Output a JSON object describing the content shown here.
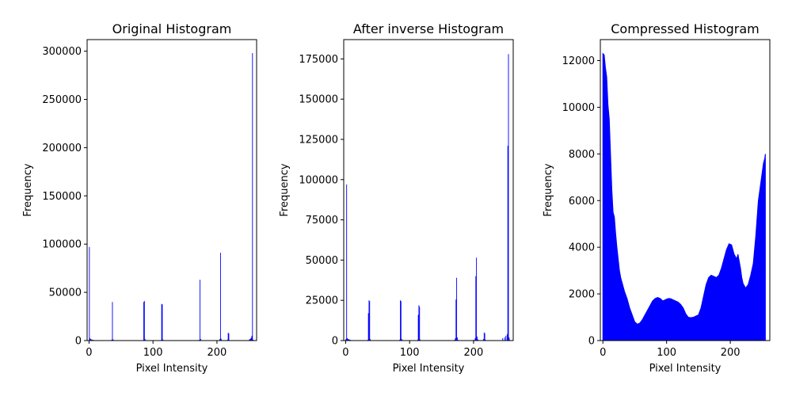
{
  "chart_data": [
    {
      "type": "bar",
      "title": "Original Histogram",
      "xlabel": "Pixel Intensity",
      "ylabel": "Frequency",
      "xlim": [
        -3,
        262
      ],
      "ylim": [
        0,
        312000
      ],
      "xticks": [
        0,
        100,
        200
      ],
      "yticks": [
        0,
        50000,
        100000,
        150000,
        200000,
        250000,
        300000
      ],
      "color": "#0000ff",
      "grid": false,
      "x": [
        0,
        1,
        2,
        3,
        4,
        5,
        6,
        7,
        8,
        9,
        10,
        11,
        34,
        35,
        36,
        37,
        38,
        39,
        84,
        85,
        86,
        87,
        88,
        89,
        112,
        113,
        114,
        115,
        116,
        117,
        150,
        160,
        170,
        172,
        173,
        174,
        175,
        176,
        177,
        200,
        203,
        204,
        205,
        206,
        207,
        208,
        216,
        217,
        218,
        219,
        250,
        251,
        252,
        253,
        254,
        255,
        256
      ],
      "values": [
        97000,
        2500,
        1500,
        1200,
        900,
        700,
        600,
        500,
        400,
        300,
        200,
        150,
        300,
        900,
        40000,
        1200,
        500,
        200,
        500,
        40000,
        41000,
        1500,
        500,
        300,
        500,
        38000,
        37500,
        1000,
        400,
        200,
        200,
        300,
        500,
        800,
        63000,
        1500,
        500,
        300,
        200,
        300,
        500,
        1500,
        91000,
        2000,
        500,
        200,
        1000,
        8000,
        7500,
        500,
        1000,
        1500,
        2000,
        3000,
        5000,
        298000,
        1000
      ]
    },
    {
      "type": "bar",
      "title": "After inverse Histogram",
      "xlabel": "Pixel Intensity",
      "ylabel": "Frequency",
      "xlim": [
        -3,
        262
      ],
      "ylim": [
        0,
        187000
      ],
      "xticks": [
        0,
        100,
        200
      ],
      "yticks": [
        0,
        25000,
        50000,
        75000,
        100000,
        125000,
        150000,
        175000
      ],
      "color": "#0000ff",
      "grid": false,
      "x": [
        0,
        1,
        2,
        3,
        4,
        5,
        6,
        7,
        8,
        9,
        10,
        34,
        35,
        36,
        37,
        38,
        39,
        84,
        85,
        86,
        87,
        88,
        89,
        112,
        113,
        114,
        115,
        116,
        117,
        160,
        170,
        171,
        172,
        173,
        174,
        175,
        176,
        200,
        202,
        203,
        204,
        205,
        206,
        207,
        215,
        216,
        217,
        218,
        245,
        248,
        250,
        252,
        253,
        254,
        255,
        256
      ],
      "values": [
        1000,
        97000,
        1500,
        1000,
        800,
        600,
        500,
        400,
        300,
        200,
        150,
        500,
        17000,
        25000,
        24500,
        800,
        300,
        500,
        25000,
        24500,
        1000,
        400,
        200,
        500,
        16000,
        22000,
        21000,
        600,
        200,
        300,
        500,
        1500,
        25500,
        39000,
        2000,
        500,
        200,
        500,
        1500,
        40000,
        51500,
        2500,
        800,
        300,
        1000,
        5000,
        4500,
        500,
        1500,
        2000,
        3000,
        4000,
        121000,
        178000,
        2000,
        500
      ]
    },
    {
      "type": "area",
      "title": "Compressed Histogram",
      "xlabel": "Pixel Intensity",
      "ylabel": "Frequency",
      "xlim": [
        -4,
        262
      ],
      "ylim": [
        0,
        12900
      ],
      "xticks": [
        0,
        100,
        200
      ],
      "yticks": [
        0,
        2000,
        4000,
        6000,
        8000,
        10000,
        12000
      ],
      "color": "#0000ff",
      "grid": false,
      "x": [
        0,
        2,
        4,
        6,
        8,
        10,
        12,
        14,
        16,
        18,
        20,
        22,
        24,
        26,
        28,
        30,
        34,
        38,
        42,
        46,
        50,
        54,
        58,
        62,
        66,
        70,
        74,
        78,
        82,
        86,
        90,
        94,
        98,
        102,
        106,
        110,
        114,
        118,
        122,
        126,
        130,
        134,
        138,
        142,
        146,
        150,
        154,
        158,
        162,
        166,
        170,
        174,
        178,
        182,
        186,
        190,
        194,
        198,
        202,
        206,
        210,
        212,
        214,
        216,
        218,
        220,
        224,
        228,
        232,
        236,
        240,
        244,
        248,
        252,
        254,
        255
      ],
      "values": [
        12300,
        12250,
        11700,
        11300,
        10100,
        9500,
        8000,
        6500,
        5500,
        5300,
        4600,
        4000,
        3500,
        3000,
        2700,
        2500,
        2100,
        1800,
        1400,
        1100,
        800,
        700,
        750,
        900,
        1100,
        1300,
        1500,
        1700,
        1800,
        1850,
        1800,
        1700,
        1750,
        1800,
        1800,
        1750,
        1700,
        1650,
        1550,
        1400,
        1150,
        1000,
        980,
        1000,
        1050,
        1100,
        1400,
        1900,
        2400,
        2700,
        2800,
        2750,
        2700,
        2800,
        3100,
        3500,
        3900,
        4150,
        4100,
        3700,
        3500,
        3700,
        3400,
        3100,
        2700,
        2450,
        2250,
        2400,
        2800,
        3300,
        4500,
        6000,
        6800,
        7600,
        7800,
        8000
      ]
    }
  ]
}
